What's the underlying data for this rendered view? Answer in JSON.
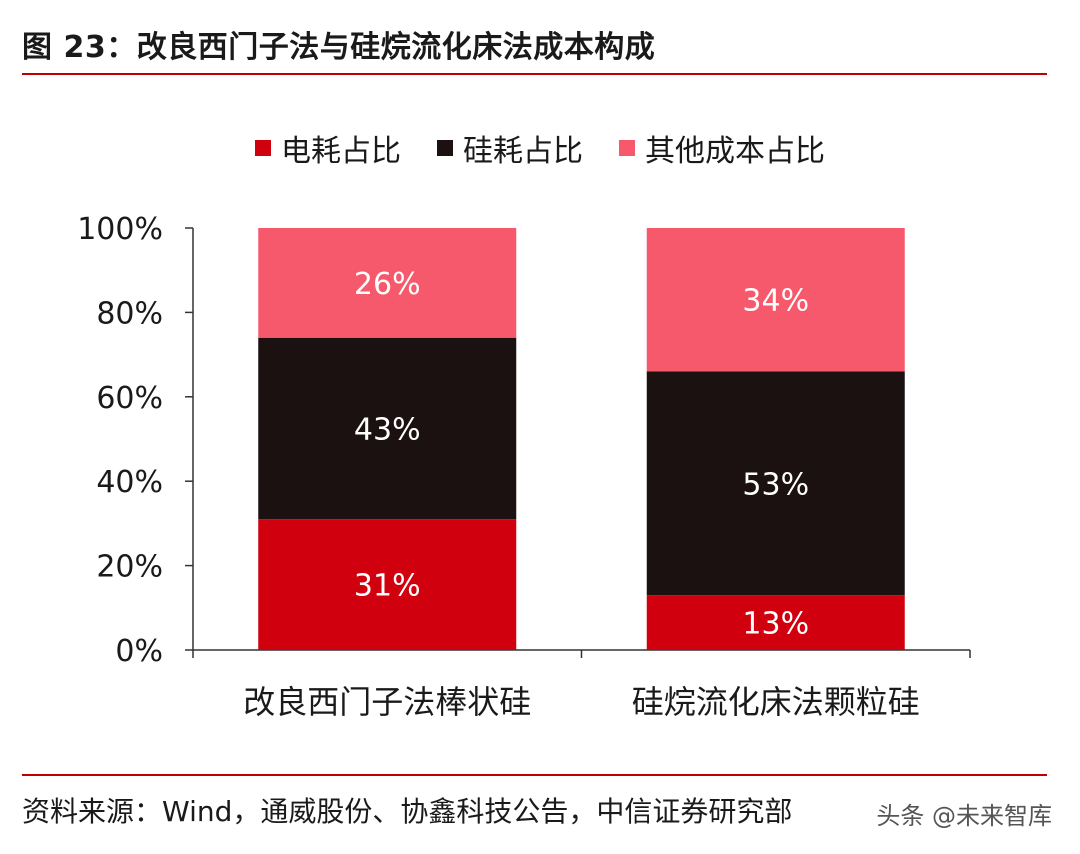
{
  "figure": {
    "title": "图 23：改良西门子法与硅烷流化床法成本构成",
    "source": "资料来源：Wind，通威股份、协鑫科技公告，中信证券研究部",
    "watermark": "头条 @未来智库"
  },
  "colors": {
    "rule": "#c00000",
    "axis": "#333333"
  },
  "chart_data": {
    "type": "bar",
    "stacked": true,
    "categories": [
      "改良西门子法棒状硅",
      "硅烷流化床法颗粒硅"
    ],
    "series": [
      {
        "name": "电耗占比",
        "values": [
          31,
          13
        ],
        "color": "#d0000f",
        "labels": [
          "31%",
          "13%"
        ]
      },
      {
        "name": "硅耗占比",
        "values": [
          43,
          53
        ],
        "color": "#1b1110",
        "labels": [
          "43%",
          "53%"
        ]
      },
      {
        "name": "其他成本占比",
        "values": [
          26,
          34
        ],
        "color": "#f5596b",
        "labels": [
          "26%",
          "34%"
        ]
      }
    ],
    "ylim": [
      0,
      100
    ],
    "yticks": [
      0,
      20,
      40,
      60,
      80,
      100
    ],
    "ytick_labels": [
      "0%",
      "20%",
      "40%",
      "60%",
      "80%",
      "100%"
    ],
    "xlabel": "",
    "ylabel": "",
    "grid": false,
    "legend": "top"
  }
}
